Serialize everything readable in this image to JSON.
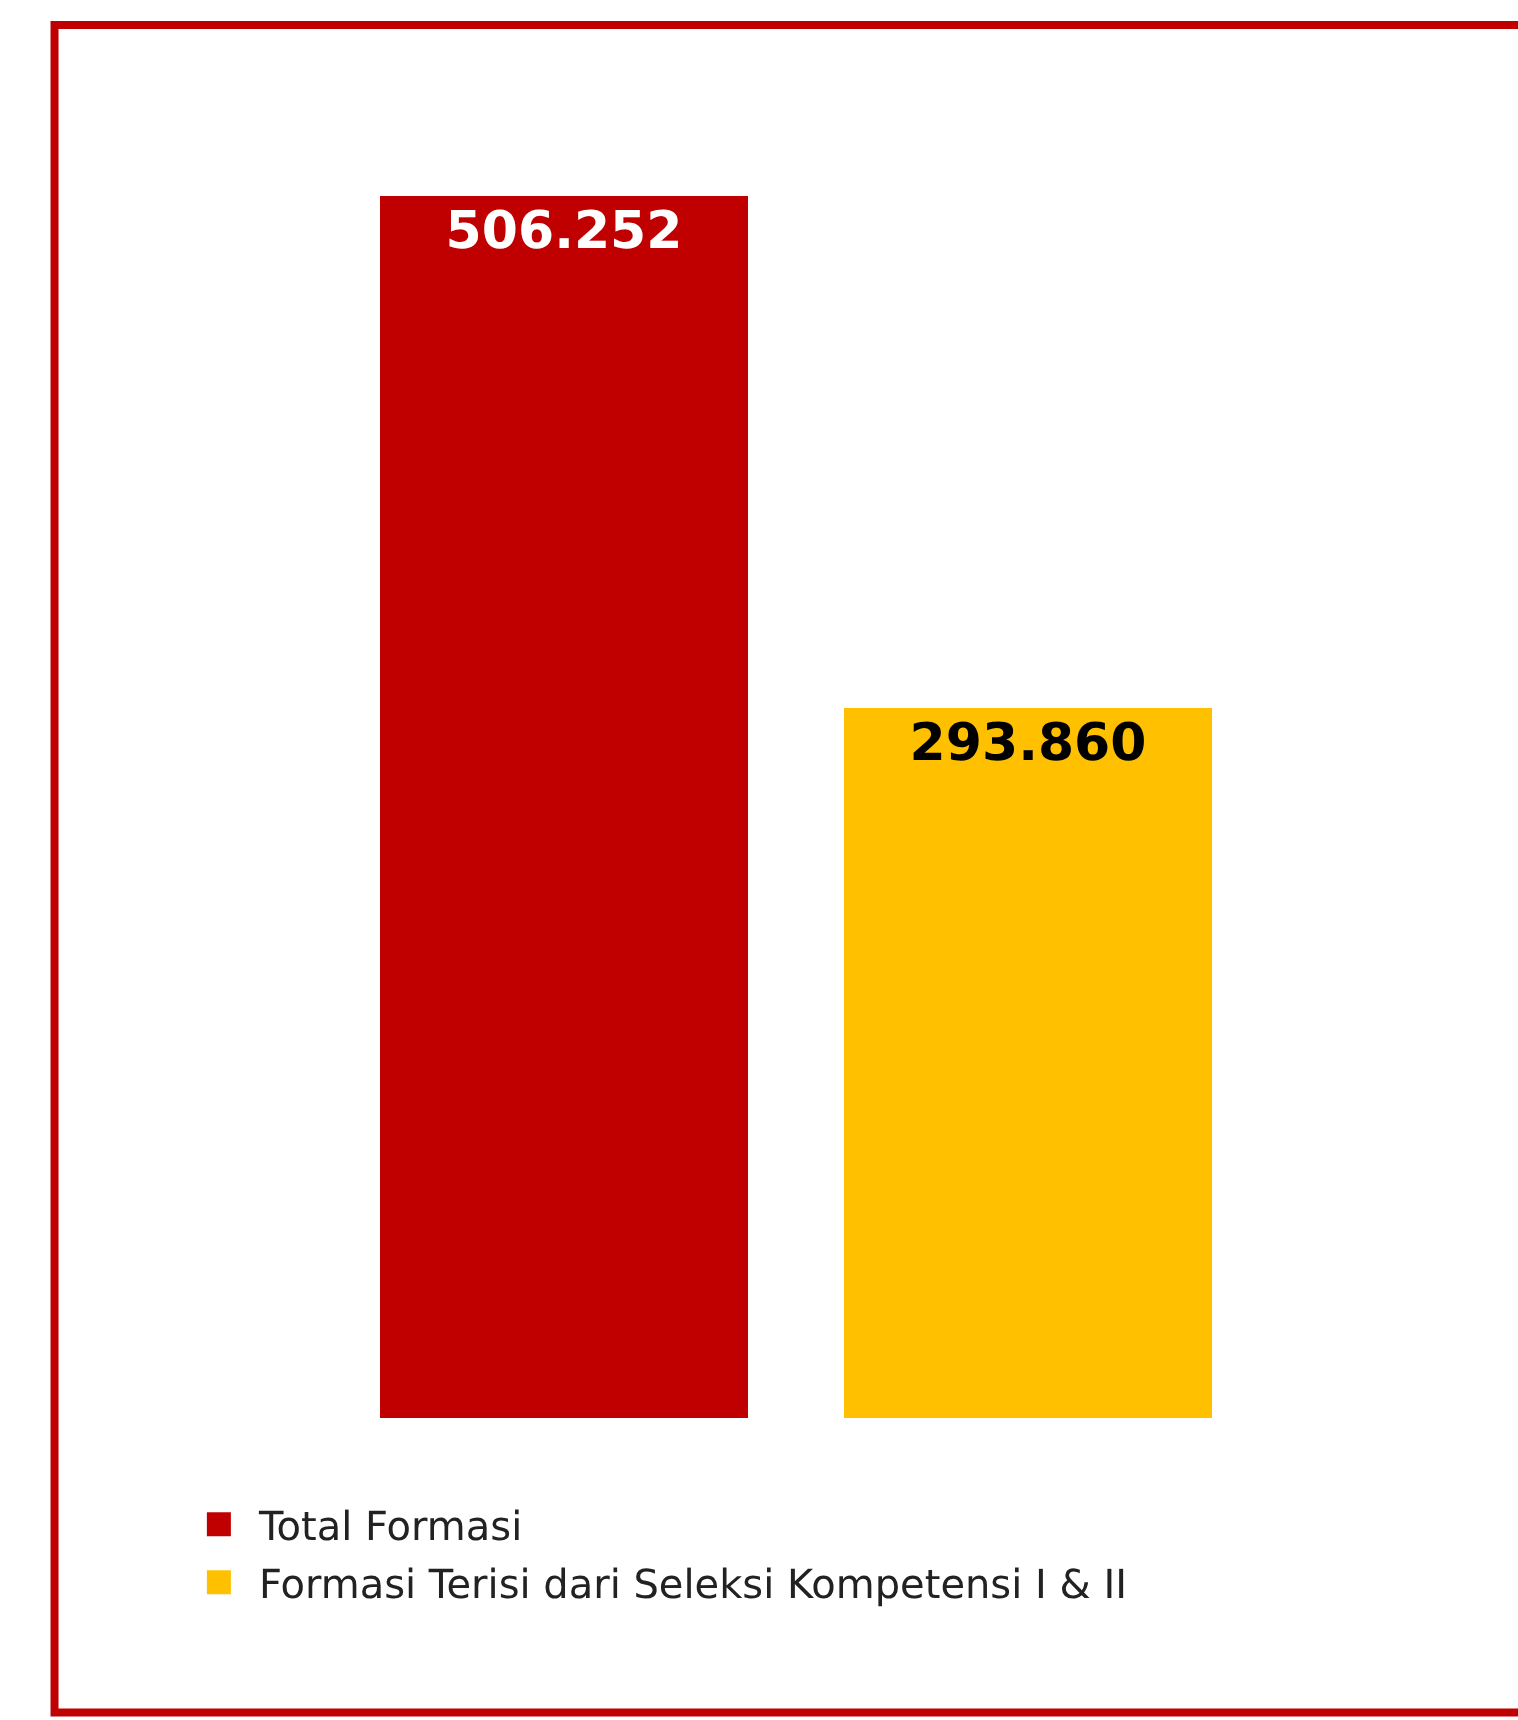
{
  "chart_data": {
    "type": "bar",
    "categories": [
      null,
      null
    ],
    "series": [
      {
        "name": "Total Formasi",
        "color": "#c00000",
        "values": [
          506252,
          null
        ],
        "value_labels": [
          "506.252",
          null
        ]
      },
      {
        "name": "Formasi Terisi dari Seleksi Kompetensi I & II",
        "color": "#ffc000",
        "values": [
          null,
          293860
        ],
        "value_labels": [
          null,
          "293.860"
        ]
      }
    ],
    "stacked": true,
    "legend": "bottom",
    "tick_labels": false
  }
}
